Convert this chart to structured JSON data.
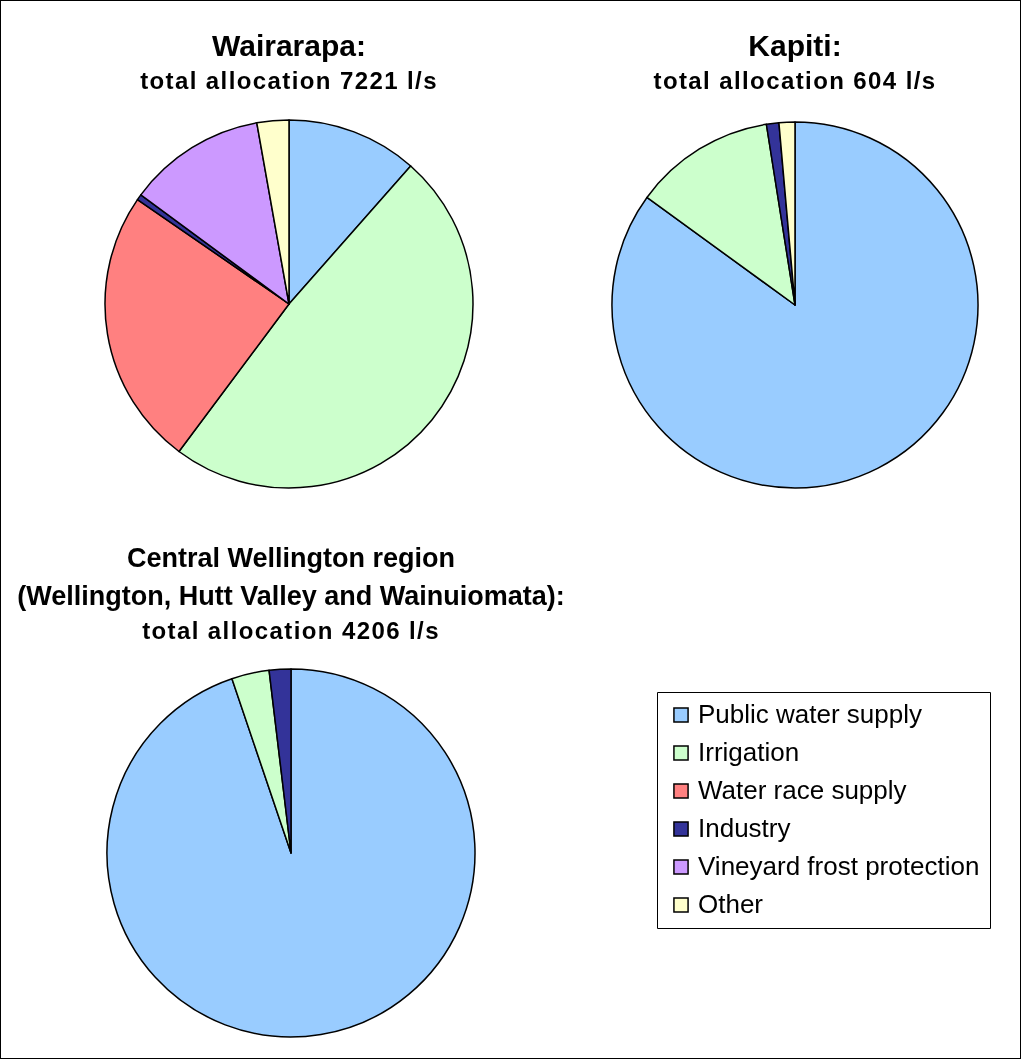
{
  "chart_data": [
    {
      "type": "pie",
      "title": "Wairarapa:",
      "subtitle": "total allocation 7221 l/s",
      "categories": [
        "Public water supply",
        "Irrigation",
        "Water race supply",
        "Industry",
        "Vineyard frost protection",
        "Other"
      ],
      "values": [
        11.5,
        48.7,
        24.4,
        0.5,
        12.1,
        2.8
      ],
      "colors": [
        "#99ccff",
        "#ccffcc",
        "#ff8080",
        "#333399",
        "#cc99ff",
        "#ffffcc"
      ],
      "legend": "bottom right"
    },
    {
      "type": "pie",
      "title": "Kapiti:",
      "subtitle": "total allocation 604 l/s",
      "categories": [
        null,
        null,
        null,
        null
      ],
      "values": [
        85.0,
        12.5,
        1.1,
        1.4
      ],
      "colors": [
        "#99ccff",
        "#ccffcc",
        "#333399",
        "#ffffcc"
      ]
    },
    {
      "type": "pie",
      "title": "Central Wellington region\n(Wellington, Hutt Valley and Wainuiomata):",
      "subtitle": "total allocation 4206 l/s",
      "categories": [
        null,
        null,
        null
      ],
      "values": [
        94.8,
        3.3,
        1.9
      ],
      "colors": [
        "#99ccff",
        "#ccffcc",
        "#333399"
      ]
    }
  ]
}
